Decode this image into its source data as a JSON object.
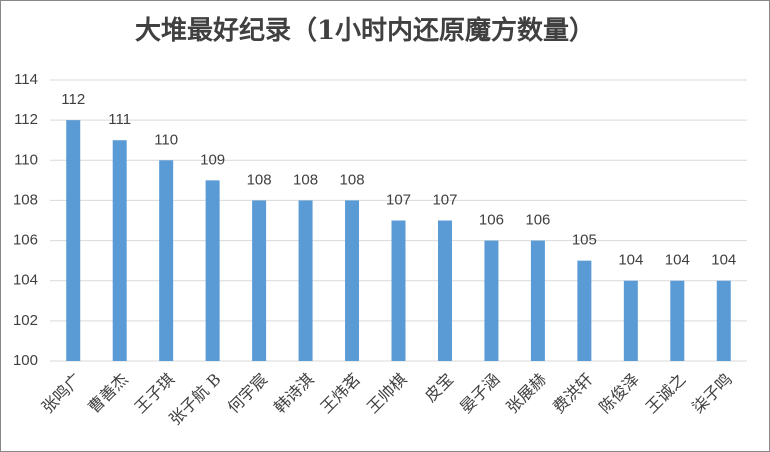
{
  "chart_data": {
    "type": "bar",
    "title": "大堆最好纪录（1小时内还原魔方数量）",
    "categories": [
      "张鸣广",
      "曹善杰",
      "王子琪",
      "张子航 B",
      "何宇宸",
      "韩诗淇",
      "王炜茗",
      "王帅棋",
      "皮宝",
      "晏子涵",
      "张展赫",
      "费洪轩",
      "陈俊泽",
      "王诚之",
      "柒子鸣"
    ],
    "values": [
      112,
      111,
      110,
      109,
      108,
      108,
      108,
      107,
      107,
      106,
      106,
      105,
      104,
      104,
      104
    ],
    "color": "#5b9bd5",
    "ylim": [
      100,
      114
    ],
    "yticks": [
      100,
      102,
      104,
      106,
      108,
      110,
      112,
      114
    ],
    "grid": true
  }
}
